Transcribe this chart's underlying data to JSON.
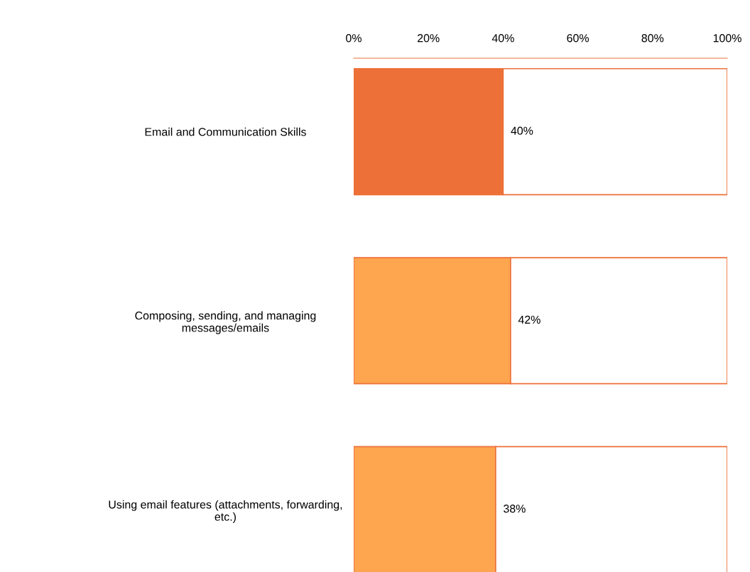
{
  "chart_data": {
    "type": "bar",
    "orientation": "horizontal",
    "stacked": true,
    "categories": [
      "Email and Communication Skills",
      "Composing, sending, and managing\nmessages/emails",
      "Using email features (attachments, forwarding,\netc.)"
    ],
    "series": [
      {
        "colors": [
          "#ed7038",
          "#fda54f",
          "#fda54f"
        ],
        "values": [
          40,
          42,
          38
        ],
        "value_labels": [
          "40%",
          "42%",
          "38%"
        ]
      },
      {
        "color": "#ffffff",
        "values": [
          60,
          58,
          62
        ]
      }
    ],
    "xlim": [
      0,
      100
    ],
    "xticks": [
      {
        "value": 0,
        "label": "0%"
      },
      {
        "value": 20,
        "label": "20%"
      },
      {
        "value": 40,
        "label": "40%"
      },
      {
        "value": 60,
        "label": "60%"
      },
      {
        "value": 80,
        "label": "80%"
      },
      {
        "value": 100,
        "label": "100%"
      }
    ],
    "grid": false,
    "legend": false
  }
}
